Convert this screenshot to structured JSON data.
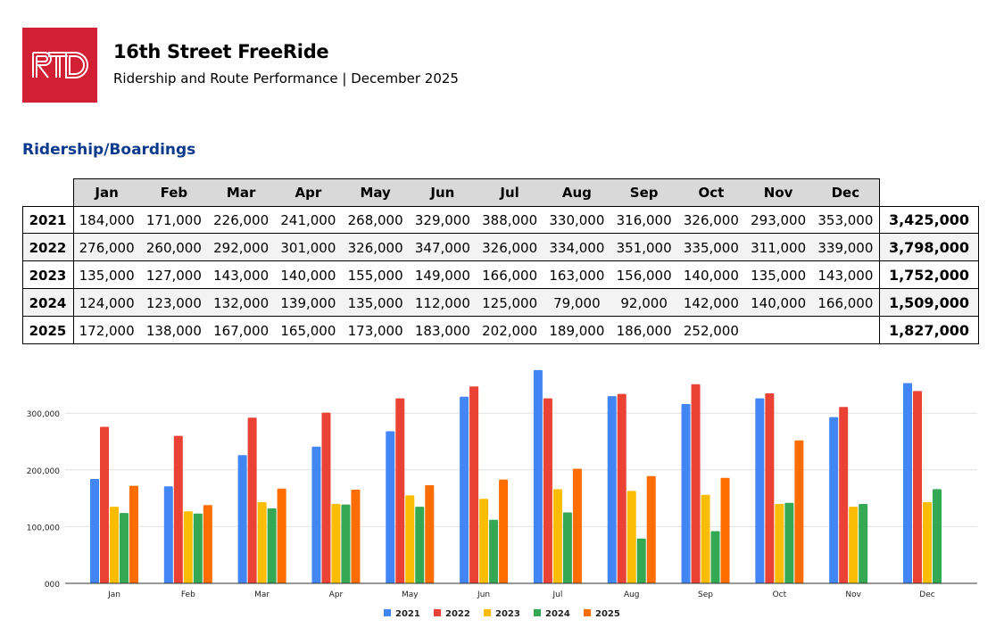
{
  "header": {
    "logo_text": "RTD",
    "title": "16th Street FreeRide",
    "subtitle": "Ridership and Route Performance | December 2025"
  },
  "section_title": "Ridership/Boardings",
  "table": {
    "months": [
      "Jan",
      "Feb",
      "Mar",
      "Apr",
      "May",
      "Jun",
      "Jul",
      "Aug",
      "Sep",
      "Oct",
      "Nov",
      "Dec"
    ],
    "rows": [
      {
        "year": "2021",
        "values": [
          "184,000",
          "171,000",
          "226,000",
          "241,000",
          "268,000",
          "329,000",
          "388,000",
          "330,000",
          "316,000",
          "326,000",
          "293,000",
          "353,000"
        ],
        "total": "3,425,000"
      },
      {
        "year": "2022",
        "values": [
          "276,000",
          "260,000",
          "292,000",
          "301,000",
          "326,000",
          "347,000",
          "326,000",
          "334,000",
          "351,000",
          "335,000",
          "311,000",
          "339,000"
        ],
        "total": "3,798,000"
      },
      {
        "year": "2023",
        "values": [
          "135,000",
          "127,000",
          "143,000",
          "140,000",
          "155,000",
          "149,000",
          "166,000",
          "163,000",
          "156,000",
          "140,000",
          "135,000",
          "143,000"
        ],
        "total": "1,752,000"
      },
      {
        "year": "2024",
        "values": [
          "124,000",
          "123,000",
          "132,000",
          "139,000",
          "135,000",
          "112,000",
          "125,000",
          "79,000",
          "92,000",
          "142,000",
          "140,000",
          "166,000"
        ],
        "total": "1,509,000"
      },
      {
        "year": "2025",
        "values": [
          "172,000",
          "138,000",
          "167,000",
          "165,000",
          "173,000",
          "183,000",
          "202,000",
          "189,000",
          "186,000",
          "252,000",
          "",
          ""
        ],
        "total": "1,827,000"
      }
    ]
  },
  "chart_data": {
    "type": "bar",
    "title": "",
    "xlabel": "",
    "ylabel": "",
    "categories": [
      "Jan",
      "Feb",
      "Mar",
      "Apr",
      "May",
      "Jun",
      "Jul",
      "Aug",
      "Sep",
      "Oct",
      "Nov",
      "Dec"
    ],
    "ylim": [
      0,
      376000
    ],
    "yticks": [
      0,
      100000,
      200000,
      300000
    ],
    "ytick_labels": [
      "000",
      "100,000",
      "200,000",
      "300,000"
    ],
    "grid": true,
    "legend_position": "bottom",
    "series": [
      {
        "name": "2021",
        "color": "#4285f4",
        "values": [
          184000,
          171000,
          226000,
          241000,
          268000,
          329000,
          388000,
          330000,
          316000,
          326000,
          293000,
          353000
        ]
      },
      {
        "name": "2022",
        "color": "#ea4335",
        "values": [
          276000,
          260000,
          292000,
          301000,
          326000,
          347000,
          326000,
          334000,
          351000,
          335000,
          311000,
          339000
        ]
      },
      {
        "name": "2023",
        "color": "#fbbc04",
        "values": [
          135000,
          127000,
          143000,
          140000,
          155000,
          149000,
          166000,
          163000,
          156000,
          140000,
          135000,
          143000
        ]
      },
      {
        "name": "2024",
        "color": "#34a853",
        "values": [
          124000,
          123000,
          132000,
          139000,
          135000,
          112000,
          125000,
          79000,
          92000,
          142000,
          140000,
          166000
        ]
      },
      {
        "name": "2025",
        "color": "#ff6d01",
        "values": [
          172000,
          138000,
          167000,
          165000,
          173000,
          183000,
          202000,
          189000,
          186000,
          252000,
          null,
          null
        ]
      }
    ]
  }
}
